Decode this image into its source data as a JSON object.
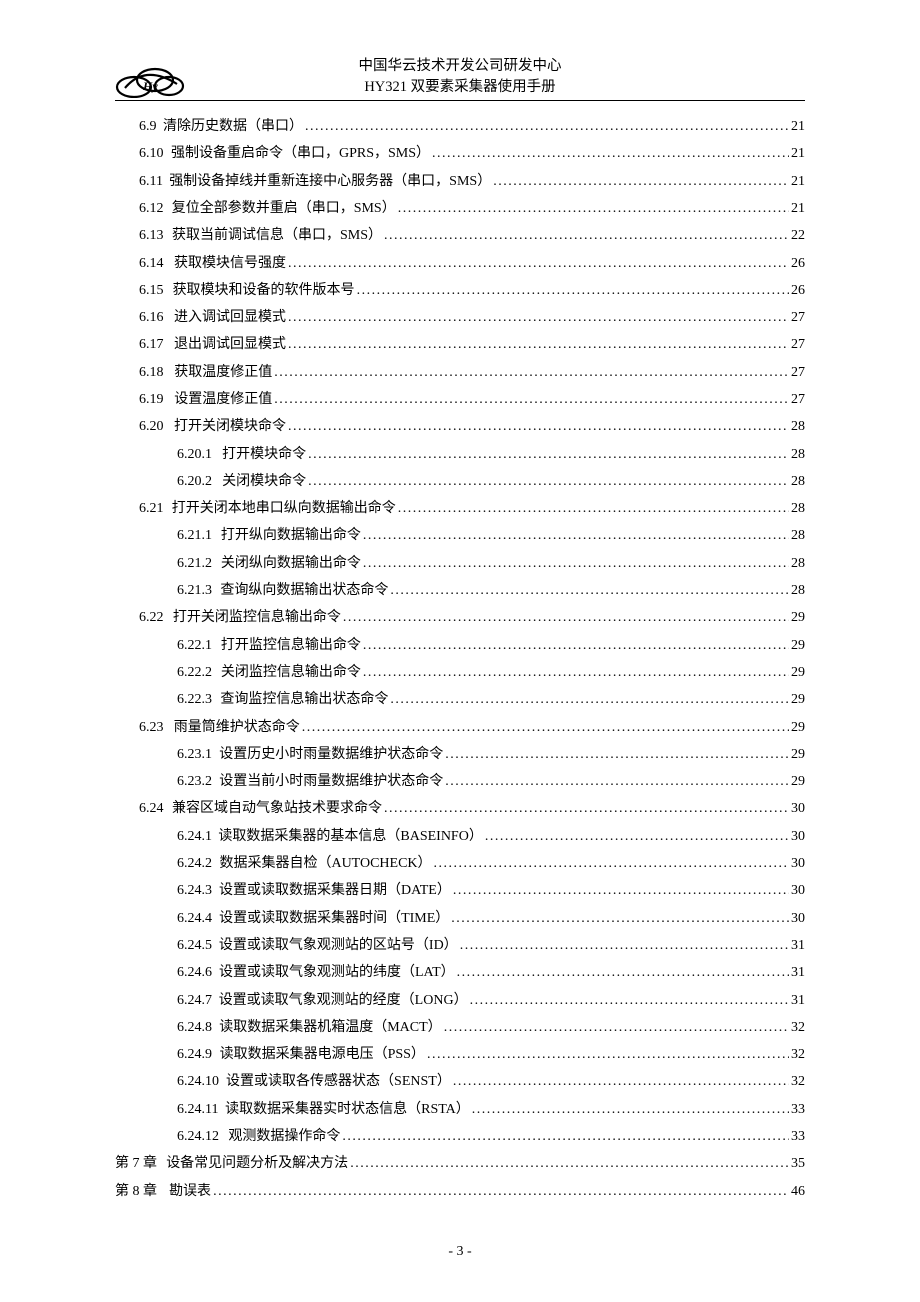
{
  "header": {
    "line1": "中国华云技术开发公司研发中心",
    "line2": "HY321 双要素采集器使用手册"
  },
  "footer": {
    "pageLabel": "- 3 -"
  },
  "toc": [
    {
      "indent": 1,
      "num": "6.9",
      "gap": 1,
      "title": "清除历史数据（串口）",
      "page": "21"
    },
    {
      "indent": 1,
      "num": "6.10",
      "gap": 2,
      "title": "强制设备重启命令（串口，GPRS，SMS）",
      "page": "21"
    },
    {
      "indent": 1,
      "num": "6.11",
      "gap": 2,
      "title": "强制设备掉线并重新连接中心服务器（串口，SMS）",
      "page": "21"
    },
    {
      "indent": 1,
      "num": "6.12",
      "gap": 2,
      "title": "复位全部参数并重启（串口，SMS）",
      "page": "21"
    },
    {
      "indent": 1,
      "num": "6.13",
      "gap": 2,
      "title": "获取当前调试信息（串口，SMS）",
      "page": "22"
    },
    {
      "indent": 1,
      "num": "6.14",
      "gap": 2,
      "title": "获取模块信号强度",
      "page": "26"
    },
    {
      "indent": 1,
      "num": "6.15",
      "gap": 2,
      "title": "获取模块和设备的软件版本号",
      "page": "26"
    },
    {
      "indent": 1,
      "num": "6.16",
      "gap": 2,
      "title": "进入调试回显模式",
      "page": "27"
    },
    {
      "indent": 1,
      "num": "6.17",
      "gap": 2,
      "title": "退出调试回显模式",
      "page": "27"
    },
    {
      "indent": 1,
      "num": "6.18",
      "gap": 2,
      "title": "获取温度修正值",
      "page": "27"
    },
    {
      "indent": 1,
      "num": "6.19",
      "gap": 2,
      "title": "设置温度修正值",
      "page": "27"
    },
    {
      "indent": 1,
      "num": "6.20",
      "gap": 2,
      "title": "打开关闭模块命令",
      "page": "28"
    },
    {
      "indent": 2,
      "num": "6.20.1",
      "gap": 2,
      "title": "打开模块命令",
      "page": "28"
    },
    {
      "indent": 2,
      "num": "6.20.2",
      "gap": 2,
      "title": "关闭模块命令",
      "page": "28"
    },
    {
      "indent": 1,
      "num": "6.21",
      "gap": 2,
      "title": "打开关闭本地串口纵向数据输出命令",
      "page": "28"
    },
    {
      "indent": 2,
      "num": "6.21.1",
      "gap": 2,
      "title": "打开纵向数据输出命令",
      "page": "28"
    },
    {
      "indent": 2,
      "num": "6.21.2",
      "gap": 2,
      "title": "关闭纵向数据输出命令",
      "page": "28"
    },
    {
      "indent": 2,
      "num": "6.21.3",
      "gap": 2,
      "title": "查询纵向数据输出状态命令",
      "page": "28"
    },
    {
      "indent": 1,
      "num": "6.22",
      "gap": 2,
      "title": "打开关闭监控信息输出命令",
      "page": "29"
    },
    {
      "indent": 2,
      "num": "6.22.1",
      "gap": 2,
      "title": "打开监控信息输出命令",
      "page": "29"
    },
    {
      "indent": 2,
      "num": "6.22.2",
      "gap": 2,
      "title": "关闭监控信息输出命令",
      "page": "29"
    },
    {
      "indent": 2,
      "num": "6.22.3",
      "gap": 2,
      "title": "查询监控信息输出状态命令",
      "page": "29"
    },
    {
      "indent": 1,
      "num": "6.23",
      "gap": 2,
      "title": "雨量筒维护状态命令",
      "page": "29"
    },
    {
      "indent": 2,
      "num": "6.23.1",
      "gap": 2,
      "title": "设置历史小时雨量数据维护状态命令",
      "page": "29"
    },
    {
      "indent": 2,
      "num": "6.23.2",
      "gap": 2,
      "title": "设置当前小时雨量数据维护状态命令",
      "page": "29"
    },
    {
      "indent": 1,
      "num": "6.24",
      "gap": 2,
      "title": "兼容区域自动气象站技术要求命令",
      "page": "30"
    },
    {
      "indent": 2,
      "num": "6.24.1",
      "gap": 2,
      "title": "读取数据采集器的基本信息（BASEINFO）",
      "page": "30"
    },
    {
      "indent": 2,
      "num": "6.24.2",
      "gap": 2,
      "title": "数据采集器自检（AUTOCHECK）",
      "page": "30"
    },
    {
      "indent": 2,
      "num": "6.24.3",
      "gap": 2,
      "title": "设置或读取数据采集器日期（DATE）",
      "page": "30"
    },
    {
      "indent": 2,
      "num": "6.24.4",
      "gap": 2,
      "title": "设置或读取数据采集器时间（TIME）",
      "page": "30"
    },
    {
      "indent": 2,
      "num": "6.24.5",
      "gap": 2,
      "title": "设置或读取气象观测站的区站号（ID）",
      "page": "31"
    },
    {
      "indent": 2,
      "num": "6.24.6",
      "gap": 2,
      "title": "设置或读取气象观测站的纬度（LAT）",
      "page": "31"
    },
    {
      "indent": 2,
      "num": "6.24.7",
      "gap": 2,
      "title": "设置或读取气象观测站的经度（LONG）",
      "page": "31"
    },
    {
      "indent": 2,
      "num": "6.24.8",
      "gap": 2,
      "title": "读取数据采集器机箱温度（MACT）",
      "page": "32"
    },
    {
      "indent": 2,
      "num": "6.24.9",
      "gap": 2,
      "title": "读取数据采集器电源电压（PSS）",
      "page": "32"
    },
    {
      "indent": 2,
      "num": "6.24.10",
      "gap": 2,
      "title": "设置或读取各传感器状态（SENST）",
      "page": "32"
    },
    {
      "indent": 2,
      "num": "6.24.11",
      "gap": 2,
      "title": "读取数据采集器实时状态信息（RSTA）",
      "page": "33"
    },
    {
      "indent": 2,
      "num": "6.24.12",
      "gap": 2,
      "title": "观测数据操作命令",
      "page": "33"
    },
    {
      "indent": 0,
      "num": "第 7 章",
      "gap": 2,
      "title": "设备常见问题分析及解决方法",
      "page": "35"
    },
    {
      "indent": 0,
      "num": "第 8 章",
      "gap": 2,
      "title": "勘误表",
      "page": "46"
    }
  ]
}
